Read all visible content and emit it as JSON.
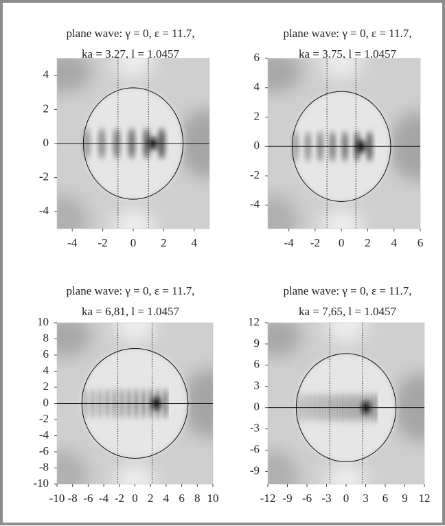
{
  "chart_data": [
    {
      "type": "field",
      "title": "plane wave:  γ = 0,  ε = 11.7,",
      "subtitle": "ka = 3.27,  l = 1.0457",
      "xlim": [
        -5,
        5
      ],
      "ylim": [
        -5,
        5
      ],
      "xticks": [
        -4,
        -2,
        0,
        2,
        4
      ],
      "yticks": [
        -4,
        -2,
        0,
        2,
        4
      ],
      "circle_radius": 3.27,
      "dotted_x": [
        -1,
        1
      ]
    },
    {
      "type": "field",
      "title": "plane wave:  γ = 0,  ε = 11.7,",
      "subtitle": "ka = 3.75,  l = 1.0457",
      "xlim": [
        -5.6,
        6
      ],
      "ylim": [
        -5.6,
        6
      ],
      "xticks": [
        -4,
        -2,
        0,
        2,
        4,
        6
      ],
      "yticks": [
        -4,
        -2,
        0,
        2,
        4,
        6
      ],
      "circle_radius": 3.75,
      "dotted_x": [
        -1.1,
        1.1
      ]
    },
    {
      "type": "field",
      "title": "plane wave:  γ = 0,  ε = 11.7,",
      "subtitle": "ka = 6,81,  l = 1.0457",
      "xlim": [
        -10,
        10
      ],
      "ylim": [
        -10,
        10
      ],
      "xticks": [
        -10,
        -8,
        -6,
        -4,
        -2,
        0,
        2,
        4,
        6,
        8,
        10
      ],
      "yticks": [
        -10,
        -8,
        -6,
        -4,
        -2,
        0,
        2,
        4,
        6,
        8,
        10
      ],
      "circle_radius": 6.81,
      "dotted_x": [
        -2.2,
        2.2
      ]
    },
    {
      "type": "field",
      "title": "plane wave:  γ = 0,  ε = 11.7,",
      "subtitle": "ka = 7,65,  l = 1.0457",
      "xlim": [
        -12,
        12
      ],
      "ylim": [
        -10.8,
        12
      ],
      "xticks": [
        -12,
        -9,
        -6,
        -3,
        0,
        3,
        6,
        9,
        12
      ],
      "yticks": [
        -9,
        -6,
        -3,
        0,
        3,
        6,
        9,
        12
      ],
      "circle_radius": 7.65,
      "dotted_x": [
        -2.5,
        2.5
      ]
    }
  ]
}
